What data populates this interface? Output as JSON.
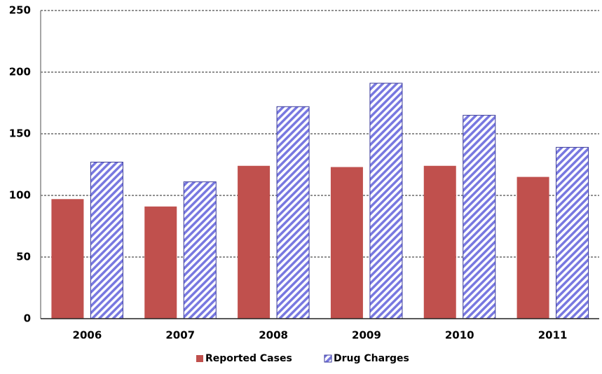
{
  "chart_data": {
    "type": "bar",
    "categories": [
      "2006",
      "2007",
      "2008",
      "2009",
      "2010",
      "2011"
    ],
    "series": [
      {
        "name": "Reported Cases",
        "color": "#c0504d",
        "values": [
          97,
          91,
          124,
          123,
          124,
          115
        ]
      },
      {
        "name": "Drug Charges",
        "color": "#7878e0",
        "hatch": true,
        "values": [
          127,
          111,
          172,
          191,
          165,
          139
        ]
      }
    ],
    "ylim": [
      0,
      250
    ],
    "yticks": [
      0,
      50,
      100,
      150,
      200,
      250
    ],
    "grid": true,
    "legend": "bottom"
  }
}
